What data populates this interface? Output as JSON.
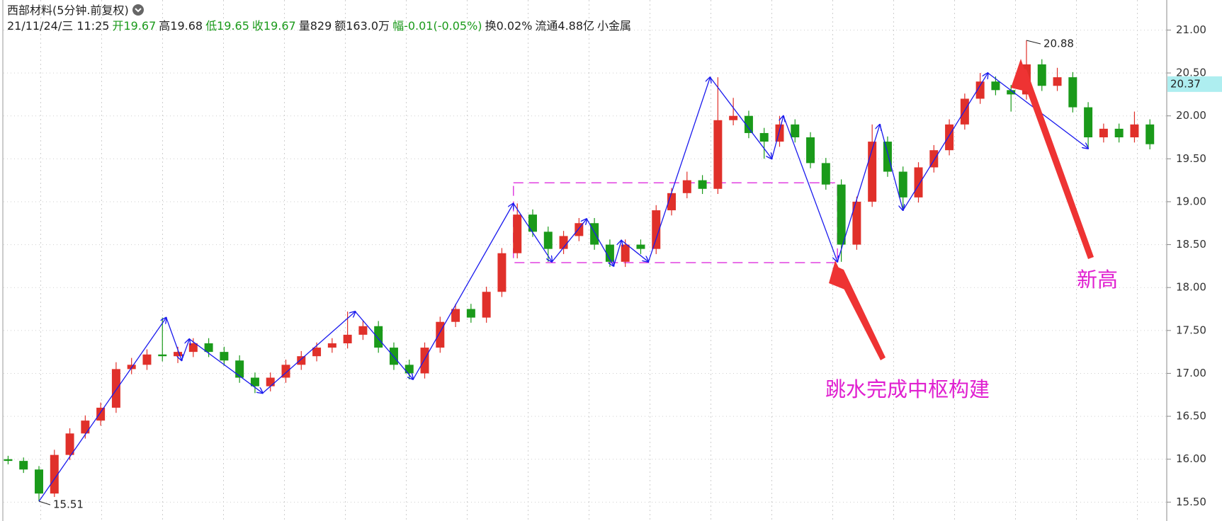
{
  "header": {
    "title": "西部材料(5分钟.前复权)",
    "info": [
      {
        "text": "21/11/24/三 11:25",
        "color": "#222222"
      },
      {
        "text": "开19.67",
        "color": "#1a9a1a"
      },
      {
        "text": "高19.68",
        "color": "#222222"
      },
      {
        "text": "低19.65",
        "color": "#1a9a1a"
      },
      {
        "text": "收19.67",
        "color": "#1a9a1a"
      },
      {
        "text": "量829",
        "color": "#222222"
      },
      {
        "text": "额163.0万",
        "color": "#222222"
      },
      {
        "text": "幅-0.01(-0.05%)",
        "color": "#1a9a1a"
      },
      {
        "text": "换0.02%",
        "color": "#222222"
      },
      {
        "text": "流通4.88亿",
        "color": "#222222"
      },
      {
        "text": "小金属",
        "color": "#222222"
      }
    ]
  },
  "chart_data": {
    "type": "candlestick",
    "up_color": "#e0302a",
    "down_color": "#1a9a1a",
    "xlim": [
      -1,
      300
    ],
    "ylim": [
      15.28,
      21.35
    ],
    "yticks": [
      {
        "value": 15.5,
        "label": "15.50"
      },
      {
        "value": 16,
        "label": "16.00"
      },
      {
        "value": 16.5,
        "label": "16.50"
      },
      {
        "value": 17,
        "label": "17.00"
      },
      {
        "value": 17.5,
        "label": "17.50"
      },
      {
        "value": 18,
        "label": "18.00"
      },
      {
        "value": 18.5,
        "label": "18.50"
      },
      {
        "value": 19,
        "label": "19.00"
      },
      {
        "value": 19.5,
        "label": "19.50"
      },
      {
        "value": 20,
        "label": "20.00"
      },
      {
        "value": 20.5,
        "label": "20.50"
      },
      {
        "value": 21,
        "label": "21.00"
      }
    ],
    "grid": true,
    "price_tag": 20.37,
    "candles": [
      [
        0,
        16.0,
        16.04,
        15.94,
        15.98
      ],
      [
        4,
        15.98,
        16.02,
        15.84,
        15.88
      ],
      [
        8,
        15.88,
        15.92,
        15.51,
        15.6
      ],
      [
        12,
        15.6,
        16.11,
        15.56,
        16.05
      ],
      [
        16,
        16.05,
        16.36,
        15.99,
        16.3
      ],
      [
        20,
        16.3,
        16.51,
        16.24,
        16.45
      ],
      [
        24,
        16.45,
        16.66,
        16.39,
        16.6
      ],
      [
        28,
        16.6,
        17.13,
        16.54,
        17.05
      ],
      [
        32,
        17.05,
        17.18,
        16.99,
        17.1
      ],
      [
        36,
        17.1,
        17.28,
        17.04,
        17.22
      ],
      [
        40,
        17.22,
        17.65,
        17.14,
        17.2
      ],
      [
        44,
        17.2,
        17.31,
        17.12,
        17.25
      ],
      [
        48,
        17.25,
        17.41,
        17.19,
        17.35
      ],
      [
        52,
        17.35,
        17.41,
        17.19,
        17.25
      ],
      [
        56,
        17.25,
        17.31,
        17.09,
        17.15
      ],
      [
        60,
        17.15,
        17.21,
        16.89,
        16.95
      ],
      [
        64,
        16.95,
        17.01,
        16.77,
        16.85
      ],
      [
        68,
        16.85,
        17.01,
        16.79,
        16.95
      ],
      [
        72,
        16.95,
        17.16,
        16.89,
        17.1
      ],
      [
        76,
        17.1,
        17.26,
        17.04,
        17.2
      ],
      [
        80,
        17.2,
        17.36,
        17.14,
        17.3
      ],
      [
        84,
        17.3,
        17.41,
        17.24,
        17.35
      ],
      [
        88,
        17.35,
        17.72,
        17.29,
        17.45
      ],
      [
        92,
        17.45,
        17.61,
        17.39,
        17.55
      ],
      [
        96,
        17.55,
        17.61,
        17.24,
        17.3
      ],
      [
        100,
        17.3,
        17.36,
        17.04,
        17.1
      ],
      [
        104,
        17.1,
        17.16,
        16.93,
        17.0
      ],
      [
        108,
        17.0,
        17.36,
        16.94,
        17.3
      ],
      [
        112,
        17.3,
        17.66,
        17.24,
        17.6
      ],
      [
        116,
        17.6,
        17.81,
        17.54,
        17.75
      ],
      [
        120,
        17.75,
        17.81,
        17.59,
        17.65
      ],
      [
        124,
        17.65,
        18.01,
        17.59,
        17.95
      ],
      [
        128,
        17.95,
        18.46,
        17.89,
        18.4
      ],
      [
        132,
        18.4,
        18.98,
        18.34,
        18.85
      ],
      [
        136,
        18.85,
        18.91,
        18.59,
        18.65
      ],
      [
        140,
        18.65,
        18.71,
        18.3,
        18.45
      ],
      [
        144,
        18.45,
        18.66,
        18.39,
        18.6
      ],
      [
        148,
        18.6,
        18.81,
        18.54,
        18.75
      ],
      [
        152,
        18.75,
        18.81,
        18.44,
        18.5
      ],
      [
        156,
        18.5,
        18.56,
        18.24,
        18.3
      ],
      [
        160,
        18.3,
        18.56,
        18.24,
        18.5
      ],
      [
        164,
        18.5,
        18.56,
        18.39,
        18.45
      ],
      [
        168,
        18.45,
        18.96,
        18.39,
        18.9
      ],
      [
        172,
        18.9,
        19.16,
        18.84,
        19.1
      ],
      [
        176,
        19.1,
        19.35,
        19.04,
        19.25
      ],
      [
        180,
        19.25,
        19.31,
        19.09,
        19.15
      ],
      [
        184,
        19.15,
        20.45,
        19.09,
        19.95
      ],
      [
        188,
        19.95,
        20.21,
        19.89,
        20.0
      ],
      [
        192,
        20.0,
        20.06,
        19.74,
        19.8
      ],
      [
        196,
        19.8,
        19.86,
        19.5,
        19.7
      ],
      [
        200,
        19.7,
        20.0,
        19.64,
        19.9
      ],
      [
        204,
        19.9,
        19.96,
        19.69,
        19.75
      ],
      [
        208,
        19.75,
        19.81,
        19.39,
        19.45
      ],
      [
        212,
        19.45,
        19.51,
        19.14,
        19.2
      ],
      [
        216,
        19.2,
        19.26,
        18.3,
        18.5
      ],
      [
        220,
        18.5,
        19.06,
        18.44,
        19.0
      ],
      [
        224,
        19.0,
        19.9,
        18.94,
        19.7
      ],
      [
        228,
        19.7,
        19.76,
        19.29,
        19.35
      ],
      [
        232,
        19.35,
        19.41,
        18.9,
        19.05
      ],
      [
        236,
        19.05,
        19.46,
        18.99,
        19.4
      ],
      [
        240,
        19.4,
        19.66,
        19.34,
        19.6
      ],
      [
        244,
        19.6,
        19.96,
        19.54,
        19.9
      ],
      [
        248,
        19.9,
        20.26,
        19.84,
        20.2
      ],
      [
        252,
        20.2,
        20.5,
        20.14,
        20.4
      ],
      [
        256,
        20.4,
        20.46,
        20.24,
        20.3
      ],
      [
        260,
        20.3,
        20.36,
        20.05,
        20.25
      ],
      [
        264,
        20.25,
        20.88,
        20.19,
        20.6
      ],
      [
        268,
        20.6,
        20.66,
        20.29,
        20.35
      ],
      [
        272,
        20.35,
        20.56,
        20.29,
        20.45
      ],
      [
        276,
        20.45,
        20.51,
        20.04,
        20.1
      ],
      [
        280,
        20.1,
        20.16,
        19.62,
        19.75
      ],
      [
        284,
        19.75,
        19.91,
        19.69,
        19.85
      ],
      [
        288,
        19.85,
        19.91,
        19.69,
        19.75
      ],
      [
        292,
        19.75,
        20.05,
        19.69,
        19.9
      ],
      [
        296,
        19.9,
        19.96,
        19.61,
        19.67
      ]
    ],
    "zigzag": {
      "color": "#1a1aee",
      "x": [
        8,
        41,
        45,
        47,
        66,
        90,
        105,
        131,
        141,
        150,
        157,
        159,
        166,
        182,
        198,
        201,
        215,
        226,
        232,
        254,
        280
      ],
      "y": [
        15.51,
        17.65,
        17.15,
        17.4,
        16.77,
        17.72,
        16.93,
        18.98,
        18.3,
        18.8,
        18.25,
        18.55,
        18.3,
        20.45,
        19.5,
        20.0,
        18.3,
        19.9,
        18.9,
        20.5,
        19.62
      ]
    },
    "zone": {
      "color": "#e040e0",
      "x": [
        131,
        215
      ],
      "y": [
        18.29,
        19.22
      ]
    },
    "annotations": [
      "跳水完成中枢构建",
      "新高"
    ]
  }
}
